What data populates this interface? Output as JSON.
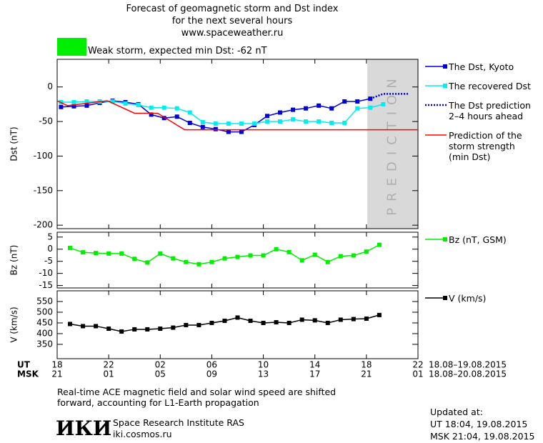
{
  "header": {
    "title": "Forecast of geomagnetic storm and Dst index\nfor the next several hours\nwww.spaceweather.ru",
    "storm_label": "Weak storm, expected min Dst: -62 nT",
    "storm_color": "#00ee00"
  },
  "chart_data": [
    {
      "type": "line",
      "y_label": "Dst (nT)",
      "ylim": [
        -205,
        40
      ],
      "yticks": [
        -200,
        -150,
        -100,
        -50,
        0
      ],
      "prediction_start": 24.07,
      "prediction_label": "PREDICTION",
      "series": [
        {
          "name": "The Dst, Kyoto",
          "color": "#0000dd",
          "marker": "square",
          "x": [
            0.3,
            1.3,
            2.3,
            3.3,
            4.3,
            5.3,
            6.3,
            7.3,
            8.3,
            9.3,
            10.3,
            11.3,
            12.3,
            13.3,
            14.3,
            15.3,
            16.3,
            17.3,
            18.3,
            19.3,
            20.3,
            21.3,
            22.3,
            23.3,
            24.3
          ],
          "values": [
            -29,
            -28,
            -27,
            -23,
            -20,
            -22,
            -25,
            -40,
            -45,
            -43,
            -52,
            -58,
            -61,
            -65,
            -65,
            -55,
            -42,
            -37,
            -33,
            -31,
            -27,
            -31,
            -21,
            -21,
            -17
          ]
        },
        {
          "name": "The recovered Dst",
          "color": "#00eeee",
          "marker": "square",
          "x": [
            0.3,
            1.3,
            2.3,
            3.3,
            4.3,
            5.3,
            6.3,
            7.3,
            8.3,
            9.3,
            10.3,
            11.3,
            12.3,
            13.3,
            14.3,
            15.3,
            16.3,
            17.3,
            18.3,
            19.3,
            20.3,
            21.3,
            22.3,
            23.3,
            24.3,
            25.3
          ],
          "values": [
            -22,
            -22,
            -21,
            -21,
            -21,
            -24,
            -26,
            -30,
            -30,
            -31,
            -37,
            -51,
            -53,
            -53,
            -53,
            -53,
            -50,
            -50,
            -47,
            -50,
            -50,
            -52,
            -52,
            -31,
            -30,
            -25
          ]
        },
        {
          "name": "The Dst prediction\n2–4 hours ahead",
          "color": "#0000dd",
          "dashed": true,
          "x": [
            24.3,
            25.3,
            27.3
          ],
          "values": [
            -17,
            -10,
            -10
          ]
        },
        {
          "name": "Prediction of the\nstorm strength\n(min Dst)",
          "color": "#ff0000",
          "x": [
            0,
            0.8,
            3.9,
            6,
            7.8,
            9.9,
            28
          ],
          "values": [
            -20,
            -27,
            -20,
            -38,
            -38,
            -62,
            -62
          ]
        }
      ]
    },
    {
      "type": "line",
      "y_label": "Bz (nT)",
      "ylim": [
        -16,
        7
      ],
      "yticks": [
        -15,
        -10,
        -5,
        0,
        5
      ],
      "series": [
        {
          "name": "Bz (nT, GSM)",
          "color": "#00ee00",
          "marker": "square",
          "x": [
            1,
            2,
            3,
            4,
            5,
            6,
            7,
            8,
            9,
            10,
            11,
            12,
            13,
            14,
            15,
            16,
            17,
            18,
            19,
            20,
            21,
            22,
            23,
            24,
            25
          ],
          "values": [
            0.5,
            -1.3,
            -1.6,
            -1.8,
            -1.8,
            -4,
            -5.5,
            -1.8,
            -3.8,
            -5.3,
            -6.2,
            -5.3,
            -3.8,
            -3.2,
            -2.6,
            -2.6,
            0,
            -1.2,
            -4.6,
            -2.3,
            -5.3,
            -2.9,
            -2.6,
            -1,
            1.8
          ]
        }
      ]
    },
    {
      "type": "line",
      "y_label": "V (km/s)",
      "ylim": [
        283,
        600
      ],
      "yticks": [
        350,
        400,
        450,
        500,
        550
      ],
      "xlim": [
        0,
        28
      ],
      "x_row_label": "UT",
      "x_range": "18.08–19.08.2015",
      "xticks": [
        {
          "value": 0,
          "label": "18"
        },
        {
          "value": 4,
          "label": "22"
        },
        {
          "value": 8,
          "label": "02"
        },
        {
          "value": 12,
          "label": "06"
        },
        {
          "value": 16,
          "label": "10"
        },
        {
          "value": 20,
          "label": "14"
        },
        {
          "value": 24,
          "label": "18"
        },
        {
          "value": 28,
          "label": "22"
        }
      ],
      "x2_row_label": "MSK",
      "x2_range": "18.08–20.08.2015",
      "x2ticks": [
        {
          "value": 0,
          "label": "21"
        },
        {
          "value": 4,
          "label": "01"
        },
        {
          "value": 8,
          "label": "05"
        },
        {
          "value": 12,
          "label": "09"
        },
        {
          "value": 16,
          "label": "13"
        },
        {
          "value": 20,
          "label": "17"
        },
        {
          "value": 24,
          "label": "21"
        },
        {
          "value": 28,
          "label": "01"
        }
      ],
      "series": [
        {
          "name": "V (km/s)",
          "color": "#000000",
          "marker": "square",
          "x": [
            1,
            2,
            3,
            4,
            5,
            6,
            7,
            8,
            9,
            10,
            11,
            12,
            13,
            14,
            15,
            16,
            17,
            18,
            19,
            20,
            21,
            22,
            23,
            24,
            25
          ],
          "values": [
            445,
            435,
            435,
            423,
            410,
            420,
            420,
            423,
            428,
            440,
            440,
            450,
            460,
            475,
            460,
            450,
            453,
            450,
            465,
            462,
            450,
            465,
            468,
            470,
            487
          ]
        }
      ]
    }
  ],
  "footer": {
    "note": "Real-time ACE magnetic field and solar wind speed are shifted\nforward, accounting for L1-Earth propagation",
    "logo": "ИКИ",
    "institute": "Space Research Institute RAS",
    "site": "iki.cosmos.ru",
    "updated": "Updated at:\nUT   18:04, 19.08.2015\nMSK 21:04, 19.08.2015"
  }
}
